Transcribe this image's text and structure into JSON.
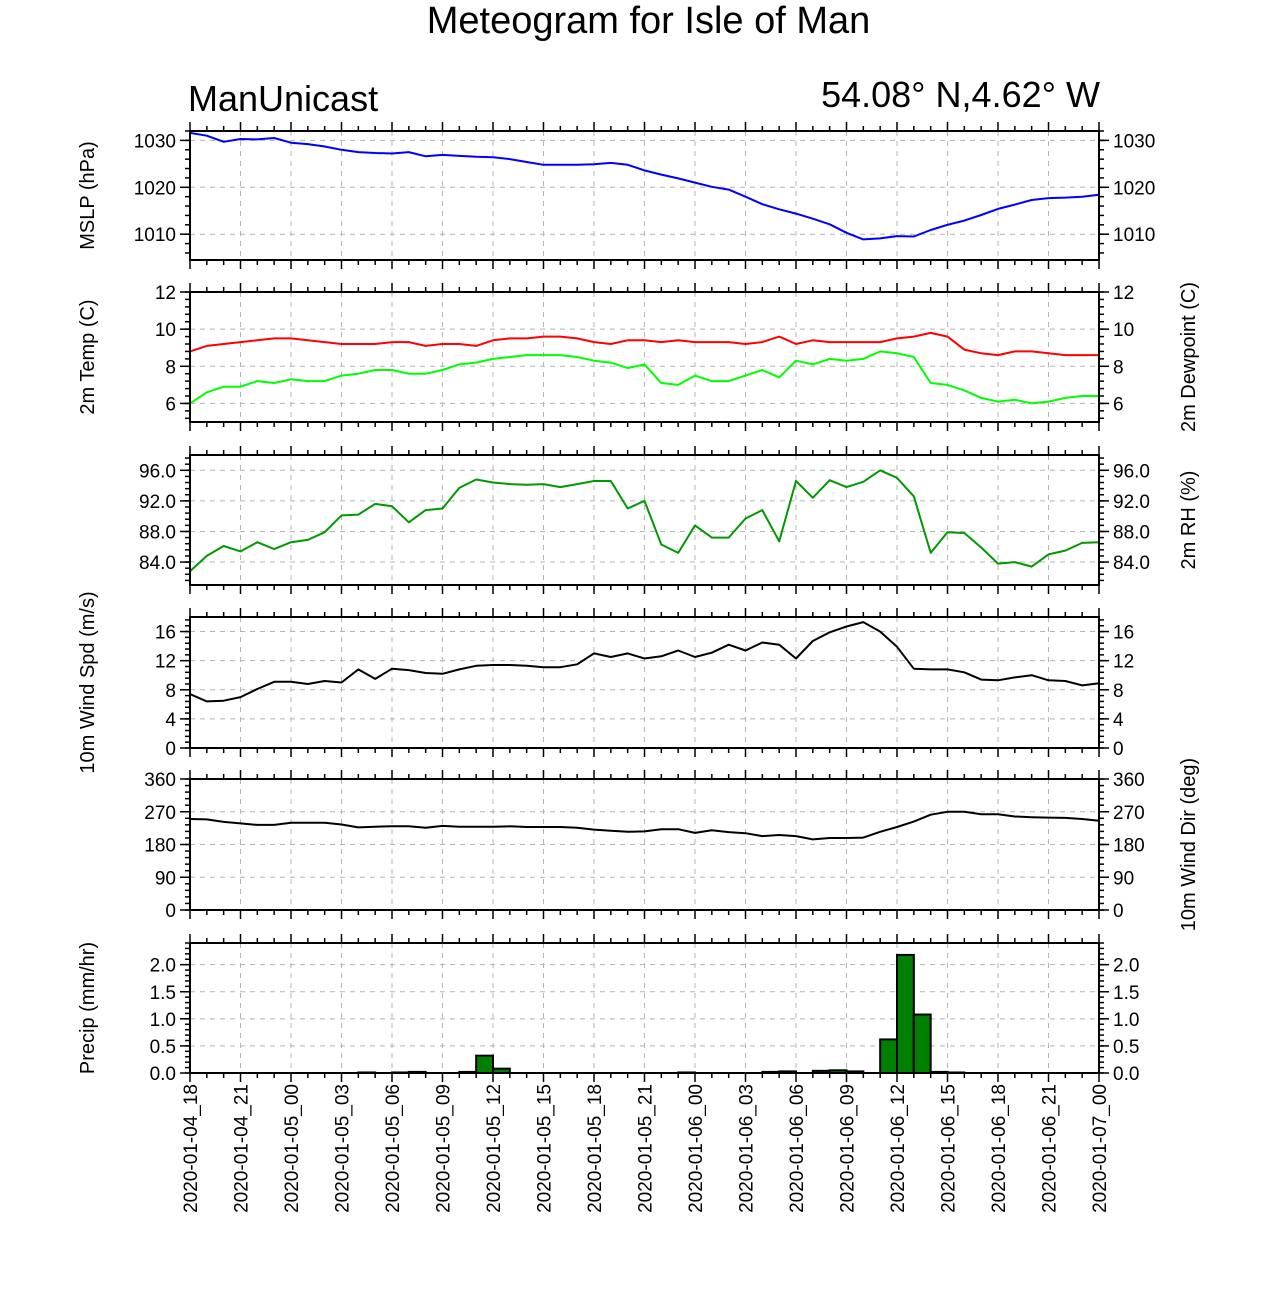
{
  "header": {
    "title": "Meteogram for Isle of Man",
    "left_label": "ManUnicast",
    "right_label": "54.08° N,4.62° W"
  },
  "x_axis": {
    "tick_labels": [
      "2020-01-04_18",
      "2020-01-04_21",
      "2020-01-05_00",
      "2020-01-05_03",
      "2020-01-05_06",
      "2020-01-05_09",
      "2020-01-05_12",
      "2020-01-05_15",
      "2020-01-05_18",
      "2020-01-05_21",
      "2020-01-06_00",
      "2020-01-06_03",
      "2020-01-06_06",
      "2020-01-06_09",
      "2020-01-06_12",
      "2020-01-06_15",
      "2020-01-06_18",
      "2020-01-06_21",
      "2020-01-07_00"
    ],
    "range_hours": [
      0,
      54
    ],
    "tick_step_hours": 3
  },
  "colors": {
    "mslp": "#0000ff",
    "temp": "#ff0000",
    "dewpoint": "#00ff00",
    "rh": "#009900",
    "wind": "#000000",
    "precip_fill": "#008000",
    "grid": "#b4b4b4"
  },
  "chart_data": [
    {
      "type": "line",
      "ylabel": "MSLP (hPa)",
      "ylim": [
        1004.5,
        1032
      ],
      "yticks": [
        1010,
        1020,
        1030
      ],
      "tick_labels": [
        "1010",
        "1020",
        "1030"
      ],
      "series": [
        {
          "values": [
            1031.6,
            1031.0,
            1029.7,
            1030.3,
            1030.2,
            1030.5,
            1029.5,
            1029.2,
            1028.7,
            1028.0,
            1027.5,
            1027.3,
            1027.2,
            1027.5,
            1026.6,
            1026.9,
            1026.7,
            1026.5,
            1026.4,
            1026.0,
            1025.4,
            1024.8,
            1024.8,
            1024.8,
            1024.9,
            1025.2,
            1024.8,
            1023.6,
            1022.7,
            1021.9,
            1021.0,
            1020.1,
            1019.5,
            1018.0,
            1016.4,
            1015.3,
            1014.4,
            1013.3,
            1012.1,
            1010.3,
            1008.9,
            1009.1,
            1009.6,
            1009.5,
            1010.9,
            1012.0,
            1012.9,
            1014.1,
            1015.4,
            1016.3,
            1017.3,
            1017.7,
            1017.8,
            1018.0,
            1018.4
          ]
        }
      ]
    },
    {
      "type": "line",
      "ylabel": "2m Temp (C)",
      "ylabel_right": "2m Dewpoint (C)",
      "ylim": [
        5,
        12
      ],
      "yticks": [
        6,
        8,
        10,
        12
      ],
      "tick_labels": [
        "6",
        "8",
        "10",
        "12"
      ],
      "series": [
        {
          "values": [
            8.8,
            9.1,
            9.2,
            9.3,
            9.4,
            9.5,
            9.5,
            9.4,
            9.3,
            9.2,
            9.2,
            9.2,
            9.3,
            9.3,
            9.1,
            9.2,
            9.2,
            9.1,
            9.4,
            9.5,
            9.5,
            9.6,
            9.6,
            9.5,
            9.3,
            9.2,
            9.4,
            9.4,
            9.3,
            9.4,
            9.3,
            9.3,
            9.3,
            9.2,
            9.3,
            9.6,
            9.2,
            9.4,
            9.3,
            9.3,
            9.3,
            9.3,
            9.5,
            9.6,
            9.8,
            9.6,
            8.9,
            8.7,
            8.6,
            8.8,
            8.8,
            8.7,
            8.6,
            8.6,
            8.6
          ]
        },
        {
          "values": [
            6.0,
            6.6,
            6.9,
            6.9,
            7.2,
            7.1,
            7.3,
            7.2,
            7.2,
            7.5,
            7.6,
            7.8,
            7.8,
            7.6,
            7.6,
            7.8,
            8.1,
            8.2,
            8.4,
            8.5,
            8.6,
            8.6,
            8.6,
            8.5,
            8.3,
            8.2,
            7.9,
            8.1,
            7.1,
            7.0,
            7.5,
            7.2,
            7.2,
            7.5,
            7.8,
            7.4,
            8.3,
            8.1,
            8.4,
            8.3,
            8.4,
            8.8,
            8.7,
            8.5,
            7.1,
            7.0,
            6.7,
            6.3,
            6.1,
            6.2,
            6.0,
            6.1,
            6.3,
            6.4,
            6.4
          ]
        }
      ]
    },
    {
      "type": "line",
      "ylabel_right": "2m RH (%)",
      "ylim": [
        81,
        98
      ],
      "yticks": [
        84,
        88,
        92,
        96
      ],
      "tick_labels": [
        "84.0",
        "88.0",
        "92.0",
        "96.0"
      ],
      "series": [
        {
          "values": [
            82.8,
            84.8,
            86.1,
            85.4,
            86.6,
            85.7,
            86.6,
            86.9,
            87.9,
            90.1,
            90.2,
            91.6,
            91.3,
            89.2,
            90.8,
            91.0,
            93.7,
            94.8,
            94.4,
            94.2,
            94.1,
            94.2,
            93.8,
            94.2,
            94.6,
            94.6,
            91.0,
            92.0,
            86.3,
            85.2,
            88.8,
            87.2,
            87.2,
            89.7,
            90.8,
            86.7,
            94.6,
            92.4,
            94.7,
            93.8,
            94.5,
            96.0,
            95.0,
            92.6,
            85.2,
            87.9,
            87.8,
            85.9,
            83.8,
            84.0,
            83.4,
            85.0,
            85.5,
            86.5,
            86.6
          ]
        }
      ]
    },
    {
      "type": "line",
      "ylabel": "10m Wind Spd (m/s)",
      "ylim": [
        0,
        18
      ],
      "yticks": [
        0,
        4,
        8,
        12,
        16
      ],
      "tick_labels": [
        "0",
        "4",
        "8",
        "12",
        "16"
      ],
      "series": [
        {
          "values": [
            7.4,
            6.4,
            6.5,
            7.0,
            8.1,
            9.1,
            9.1,
            8.8,
            9.2,
            9.0,
            10.8,
            9.5,
            10.9,
            10.7,
            10.3,
            10.2,
            10.8,
            11.3,
            11.4,
            11.4,
            11.3,
            11.1,
            11.1,
            11.5,
            13.0,
            12.5,
            13.0,
            12.3,
            12.6,
            13.4,
            12.5,
            13.1,
            14.2,
            13.4,
            14.5,
            14.2,
            12.3,
            14.7,
            15.9,
            16.7,
            17.3,
            16.0,
            13.9,
            10.9,
            10.8,
            10.8,
            10.4,
            9.4,
            9.3,
            9.7,
            10.0,
            9.3,
            9.2,
            8.6,
            8.9
          ]
        }
      ]
    },
    {
      "type": "line",
      "ylabel_right": "10m Wind Dir (deg)",
      "ylim": [
        0,
        360
      ],
      "yticks": [
        0,
        90,
        180,
        270,
        360
      ],
      "tick_labels": [
        "0",
        "90",
        "180",
        "270",
        "360"
      ],
      "series": [
        {
          "values": [
            250,
            249,
            242,
            238,
            234,
            234,
            240,
            240,
            240,
            235,
            227,
            229,
            230,
            230,
            226,
            231,
            229,
            229,
            229,
            230,
            228,
            228,
            228,
            226,
            221,
            218,
            215,
            216,
            222,
            222,
            212,
            219,
            214,
            211,
            203,
            206,
            203,
            194,
            198,
            198,
            199,
            215,
            228,
            243,
            262,
            270,
            270,
            263,
            263,
            257,
            255,
            254,
            253,
            250,
            245
          ]
        }
      ]
    },
    {
      "type": "bar",
      "ylabel": "Precip (mm/hr)",
      "ylim": [
        0,
        2.4
      ],
      "yticks": [
        0,
        0.5,
        1,
        1.5,
        2
      ],
      "tick_labels": [
        "0.0",
        "0.5",
        "1.0",
        "1.5",
        "2.0"
      ],
      "values": [
        0,
        0,
        0,
        0,
        0,
        0,
        0,
        0,
        0,
        0,
        0.01,
        0,
        0.01,
        0.02,
        0,
        0,
        0.02,
        0.32,
        0.08,
        0,
        0,
        0,
        0,
        0,
        0,
        0,
        0,
        0,
        0,
        0.01,
        0,
        0,
        0,
        0,
        0.02,
        0.03,
        0,
        0.04,
        0.05,
        0.03,
        0,
        0.62,
        2.18,
        1.08,
        0.02,
        0.01,
        0,
        0,
        0,
        0,
        0,
        0,
        0,
        0
      ]
    }
  ]
}
